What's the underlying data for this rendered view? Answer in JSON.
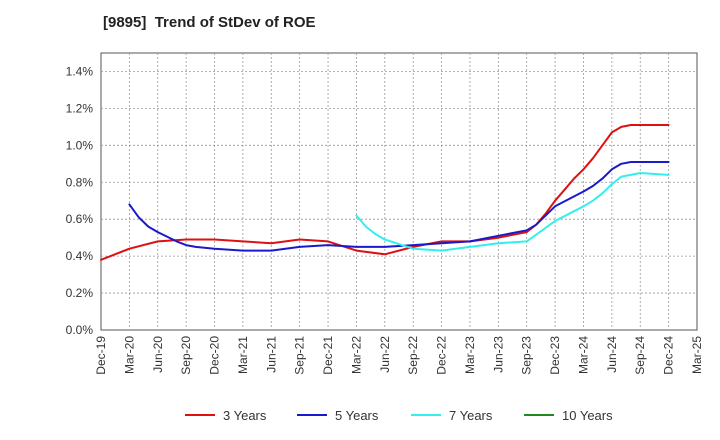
{
  "chart_data": {
    "type": "line",
    "title": "[9895]  Trend of StDev of ROE",
    "xlabel": "",
    "ylabel": "",
    "x_tick_labels": [
      "Dec-19",
      "Mar-20",
      "Jun-20",
      "Sep-20",
      "Dec-20",
      "Mar-21",
      "Jun-21",
      "Sep-21",
      "Dec-21",
      "Mar-22",
      "Jun-22",
      "Sep-22",
      "Dec-22",
      "Mar-23",
      "Jun-23",
      "Sep-23",
      "Dec-23",
      "Mar-24",
      "Jun-24",
      "Sep-24",
      "Dec-24",
      "Mar-25"
    ],
    "y_tick_labels": [
      "0.0%",
      "0.2%",
      "0.4%",
      "0.6%",
      "0.8%",
      "1.0%",
      "1.2%",
      "1.4%"
    ],
    "ylim": [
      0,
      1.5
    ],
    "grid": true,
    "legend_position": "bottom",
    "series": [
      {
        "name": "3 Years",
        "color": "#dd1111",
        "x": [
          "Dec-19",
          "Mar-20",
          "Jun-20",
          "Sep-20",
          "Dec-20",
          "Mar-21",
          "Jun-21",
          "Sep-21",
          "Dec-21",
          "Mar-22",
          "Jun-22",
          "Sep-22",
          "Dec-22",
          "Mar-23",
          "Jun-23",
          "Sep-23",
          "Oct-23",
          "Nov-23",
          "Dec-23",
          "Jan-24",
          "Feb-24",
          "Mar-24",
          "Apr-24",
          "May-24",
          "Jun-24",
          "Jul-24",
          "Aug-24",
          "Sep-24",
          "Dec-24"
        ],
        "values": [
          0.38,
          0.44,
          0.48,
          0.49,
          0.49,
          0.48,
          0.47,
          0.49,
          0.48,
          0.43,
          0.41,
          0.45,
          0.48,
          0.48,
          0.5,
          0.53,
          0.57,
          0.63,
          0.7,
          0.76,
          0.82,
          0.87,
          0.93,
          1.0,
          1.07,
          1.1,
          1.11,
          1.11,
          1.11
        ]
      },
      {
        "name": "5 Years",
        "color": "#1a1acc",
        "x": [
          "Mar-20",
          "Apr-20",
          "May-20",
          "Jun-20",
          "Aug-20",
          "Sep-20",
          "Oct-20",
          "Dec-20",
          "Mar-21",
          "Jun-21",
          "Sep-21",
          "Dec-21",
          "Mar-22",
          "Jun-22",
          "Sep-22",
          "Dec-22",
          "Mar-23",
          "Jun-23",
          "Sep-23",
          "Oct-23",
          "Dec-23",
          "Mar-24",
          "Apr-24",
          "May-24",
          "Jun-24",
          "Jul-24",
          "Aug-24",
          "Sep-24",
          "Dec-24"
        ],
        "values": [
          0.68,
          0.61,
          0.56,
          0.53,
          0.48,
          0.46,
          0.45,
          0.44,
          0.43,
          0.43,
          0.45,
          0.46,
          0.45,
          0.45,
          0.46,
          0.47,
          0.48,
          0.51,
          0.54,
          0.57,
          0.67,
          0.75,
          0.78,
          0.82,
          0.87,
          0.9,
          0.91,
          0.91,
          0.91
        ]
      },
      {
        "name": "7 Years",
        "color": "#33eeee",
        "x": [
          "Mar-22",
          "Apr-22",
          "May-22",
          "Jun-22",
          "Sep-22",
          "Dec-22",
          "Mar-23",
          "Jun-23",
          "Sep-23",
          "Dec-23",
          "Mar-24",
          "Apr-24",
          "May-24",
          "Jun-24",
          "Jul-24",
          "Sep-24",
          "Dec-24"
        ],
        "values": [
          0.62,
          0.56,
          0.52,
          0.49,
          0.44,
          0.43,
          0.45,
          0.47,
          0.48,
          0.59,
          0.67,
          0.7,
          0.74,
          0.79,
          0.83,
          0.85,
          0.84
        ]
      },
      {
        "name": "10 Years",
        "color": "#228822",
        "x": [],
        "values": []
      }
    ]
  }
}
